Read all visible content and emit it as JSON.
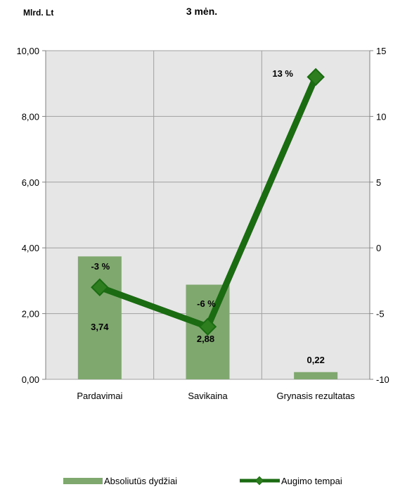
{
  "chart_data": {
    "type": "bar",
    "title": "3 mėn.",
    "ylabel": "Mlrd. Lt",
    "categories": [
      "Pardavimai",
      "Savikaina",
      "Grynasis rezultatas"
    ],
    "y_left_range": [
      0,
      10
    ],
    "y_left_ticks": [
      "0,00",
      "2,00",
      "4,00",
      "6,00",
      "8,00",
      "10,00"
    ],
    "y_right_range": [
      -10,
      15
    ],
    "y_right_ticks": [
      "-10",
      "-5",
      "0",
      "5",
      "10",
      "15"
    ],
    "series": [
      {
        "name": "Absoliutūs dydžiai",
        "kind": "bar",
        "axis": "left",
        "values": [
          3.74,
          2.88,
          0.22
        ],
        "labels": [
          "3,74",
          "2,88",
          "0,22"
        ]
      },
      {
        "name": "Augimo tempai",
        "kind": "line",
        "axis": "right",
        "values": [
          -3,
          -6,
          13
        ],
        "labels": [
          "-3 %",
          "-6 %",
          "13 %"
        ]
      }
    ],
    "grid": true,
    "legend": "bottom",
    "colors": {
      "bar": "#7fa86e",
      "line": "#1a6b12",
      "marker": "#2e7d1e",
      "plot_bg": "#e6e6e6",
      "grid": "#a0a0a0"
    }
  }
}
